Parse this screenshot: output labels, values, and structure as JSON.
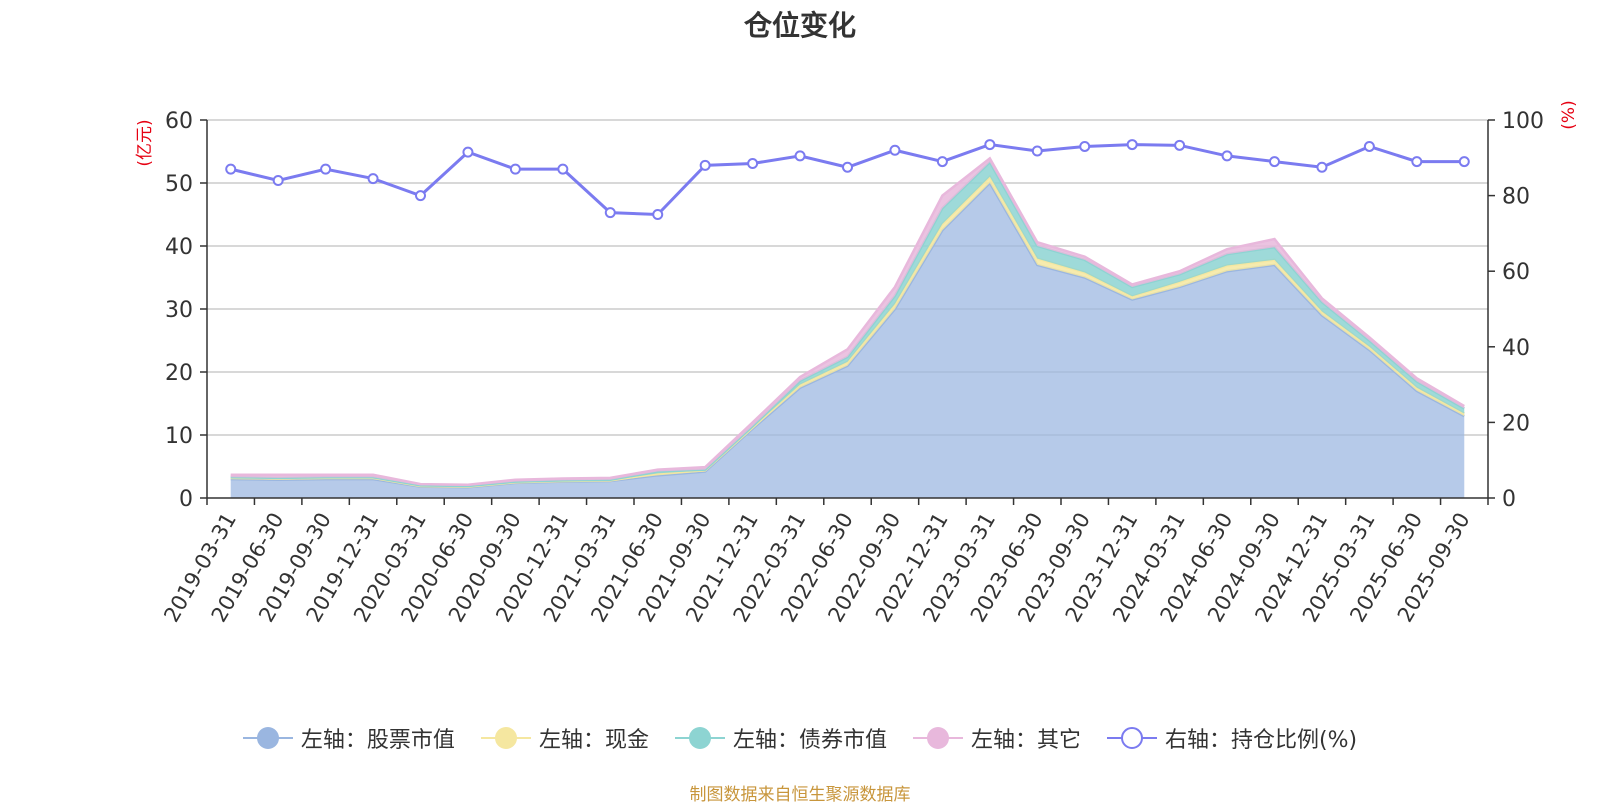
{
  "chart_data": {
    "type": "area",
    "title": "仓位变化",
    "left_unit": "(亿元)",
    "right_unit": "(%)",
    "ylim": [
      0,
      60
    ],
    "y2lim": [
      0,
      100
    ],
    "y_ticks": [
      "0",
      "10",
      "20",
      "30",
      "40",
      "50",
      "60"
    ],
    "y2_ticks": [
      "0",
      "20",
      "40",
      "60",
      "80",
      "100"
    ],
    "categories": [
      "2019-03-31",
      "2019-06-30",
      "2019-09-30",
      "2019-12-31",
      "2020-03-31",
      "2020-06-30",
      "2020-09-30",
      "2020-12-31",
      "2021-03-31",
      "2021-06-30",
      "2021-09-30",
      "2021-12-31",
      "2022-03-31",
      "2022-06-30",
      "2022-09-30",
      "2022-12-31",
      "2023-03-31",
      "2023-06-30",
      "2023-09-30",
      "2023-12-31",
      "2024-03-31",
      "2024-06-30",
      "2024-09-30",
      "2024-12-31",
      "2025-03-31",
      "2025-06-30",
      "2025-09-30"
    ],
    "series": [
      {
        "name": "左轴：股票市值",
        "axis": "left",
        "color": "#9ab6e0",
        "values": [
          3.0,
          2.9,
          3.0,
          3.0,
          1.8,
          1.7,
          2.4,
          2.6,
          2.7,
          3.6,
          4.2,
          11.0,
          17.5,
          21.0,
          30.0,
          42.5,
          50.0,
          37.0,
          35.0,
          31.5,
          33.5,
          36.0,
          37.0,
          29.0,
          23.5,
          17.0,
          13.0
        ]
      },
      {
        "name": "左轴：现金",
        "axis": "left",
        "color": "#f5e7a0",
        "values": [
          0.2,
          0.2,
          0.2,
          0.2,
          0.1,
          0.1,
          0.1,
          0.1,
          0.1,
          0.3,
          0.2,
          0.2,
          0.5,
          0.6,
          0.8,
          1.0,
          1.0,
          1.0,
          0.8,
          0.5,
          0.8,
          0.9,
          0.8,
          0.6,
          0.5,
          0.5,
          0.4
        ]
      },
      {
        "name": "左轴：债券市值",
        "axis": "left",
        "color": "#8dd4d2",
        "values": [
          0.1,
          0.1,
          0.1,
          0.1,
          0.1,
          0.1,
          0.1,
          0.1,
          0.1,
          0.3,
          0.1,
          0.2,
          0.6,
          0.8,
          1.3,
          2.5,
          2.3,
          2.0,
          2.0,
          1.5,
          1.2,
          1.8,
          2.0,
          1.5,
          1.0,
          1.0,
          0.8
        ]
      },
      {
        "name": "左轴：其它",
        "axis": "left",
        "color": "#e8b8dc",
        "values": [
          0.4,
          0.5,
          0.4,
          0.4,
          0.2,
          0.2,
          0.3,
          0.3,
          0.3,
          0.3,
          0.4,
          0.6,
          0.6,
          1.2,
          1.4,
          2.0,
          0.6,
          0.6,
          0.5,
          0.4,
          0.5,
          0.8,
          1.3,
          0.6,
          0.5,
          0.5,
          0.4
        ]
      },
      {
        "name": "右轴：持仓比例(%)",
        "axis": "right",
        "color": "#7b7bf0",
        "values": [
          87.0,
          84.0,
          87.0,
          84.5,
          80.0,
          91.5,
          87.0,
          87.0,
          75.5,
          75.0,
          88.0,
          88.5,
          90.5,
          87.5,
          92.0,
          89.0,
          93.5,
          91.8,
          93.0,
          93.5,
          93.3,
          90.5,
          89.0,
          87.5,
          93.0,
          89.0,
          89.0
        ]
      }
    ],
    "legend_position": "bottom"
  },
  "footer": {
    "source": "制图数据来自恒生聚源数据库"
  }
}
